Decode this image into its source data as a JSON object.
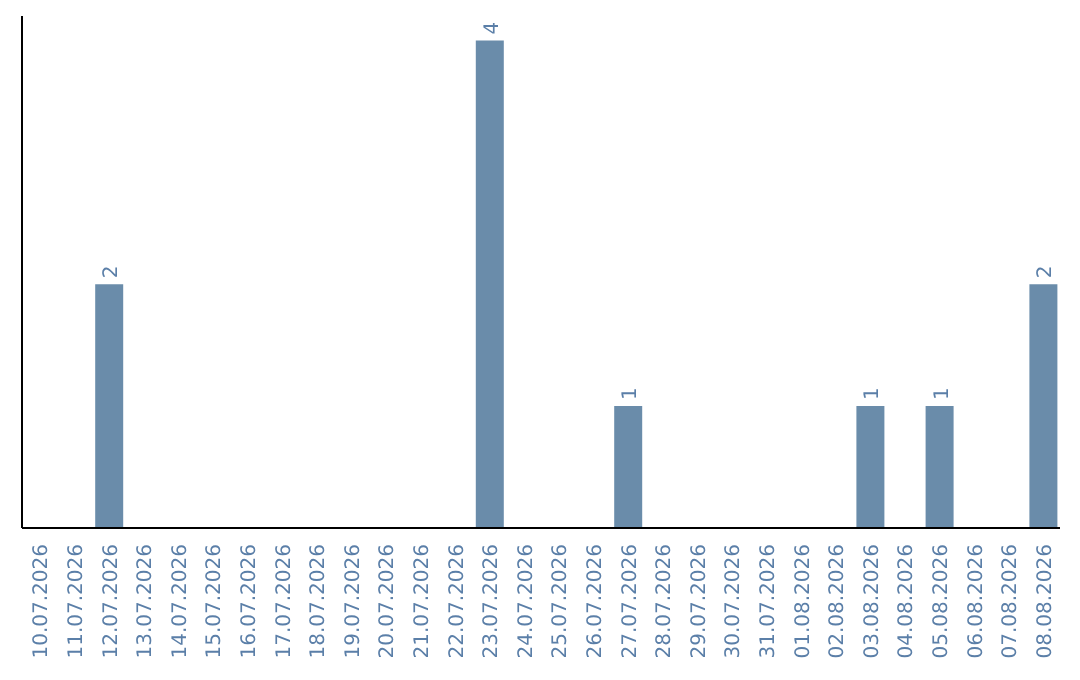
{
  "chart_data": {
    "type": "bar",
    "categories": [
      "10.07.2026",
      "11.07.2026",
      "12.07.2026",
      "13.07.2026",
      "14.07.2026",
      "15.07.2026",
      "16.07.2026",
      "17.07.2026",
      "18.07.2026",
      "19.07.2026",
      "20.07.2026",
      "21.07.2026",
      "22.07.2026",
      "23.07.2026",
      "24.07.2026",
      "25.07.2026",
      "26.07.2026",
      "27.07.2026",
      "28.07.2026",
      "29.07.2026",
      "30.07.2026",
      "31.07.2026",
      "01.08.2026",
      "02.08.2026",
      "03.08.2026",
      "04.08.2026",
      "05.08.2026",
      "06.08.2026",
      "07.08.2026",
      "08.08.2026"
    ],
    "values": [
      0,
      0,
      2,
      0,
      0,
      0,
      0,
      0,
      0,
      0,
      0,
      0,
      0,
      4,
      0,
      0,
      0,
      1,
      0,
      0,
      0,
      0,
      0,
      0,
      1,
      0,
      1,
      0,
      0,
      2
    ],
    "value_labels": [
      null,
      null,
      "2",
      null,
      null,
      null,
      null,
      null,
      null,
      null,
      null,
      null,
      null,
      "4",
      null,
      null,
      null,
      "1",
      null,
      null,
      null,
      null,
      null,
      null,
      "1",
      null,
      "1",
      null,
      null,
      "2"
    ],
    "color": "#6a8caa",
    "grid": false,
    "legend": false
  }
}
